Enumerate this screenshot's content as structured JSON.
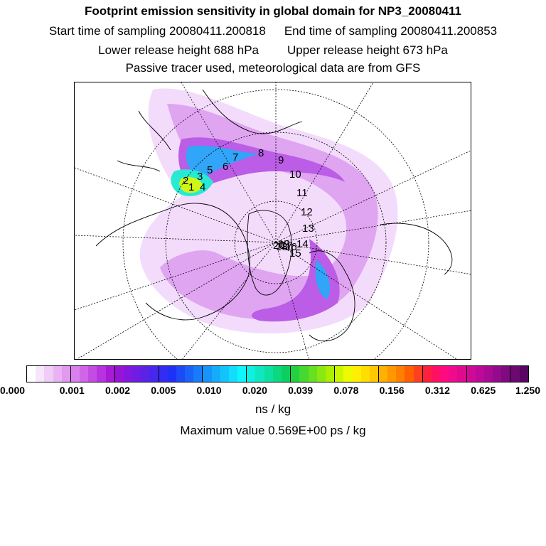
{
  "header": {
    "title": "Footprint emission sensitivity in global domain for NP3_20080411",
    "start_label": "Start time of sampling 20080411.200818",
    "end_label": "End time of sampling 20080411.200853",
    "lower_label": "Lower release height  688 hPa",
    "upper_label": "Upper release height  673 hPa",
    "note": "Passive tracer used, meteorological data are from GFS"
  },
  "map": {
    "projection": "north-polar-stereographic",
    "trajectory_labels": [
      "1",
      "2",
      "3",
      "4",
      "5",
      "6",
      "7",
      "8",
      "9",
      "10",
      "11",
      "12",
      "13",
      "14",
      "15",
      "16",
      "17",
      "18",
      "19",
      "20"
    ]
  },
  "colorbar": {
    "colors": [
      "#ffffff",
      "#f7e6fb",
      "#f0ccf7",
      "#e9b3f3",
      "#e299f0",
      "#d980ec",
      "#cf66e8",
      "#c44ce4",
      "#b833e0",
      "#a81ad6",
      "#9614d6",
      "#8318dc",
      "#6f1de2",
      "#5b22e8",
      "#4727ee",
      "#332cf3",
      "#1f31f6",
      "#1d49f7",
      "#1b62f8",
      "#197bf9",
      "#1793fa",
      "#15acfb",
      "#13c4fc",
      "#11ddfd",
      "#0ff6fe",
      "#0ff0e0",
      "#0ee8c0",
      "#0de0a0",
      "#0cd880",
      "#0bd060",
      "#22d040",
      "#44d830",
      "#66e020",
      "#88e810",
      "#aaf000",
      "#ccf500",
      "#eefa00",
      "#ffef00",
      "#ffdd00",
      "#ffc800",
      "#ffb000",
      "#ff9800",
      "#ff7f00",
      "#ff6000",
      "#ff4020",
      "#ff2040",
      "#ff1060",
      "#ff0a80",
      "#f00a8c",
      "#e00a90",
      "#cf0a96",
      "#bc0a98",
      "#a80a94",
      "#940a8c",
      "#800a80",
      "#6c0870",
      "#580660"
    ],
    "tick_labels": [
      "0.000",
      "0.001",
      "0.002",
      "0.005",
      "0.010",
      "0.020",
      "0.039",
      "0.078",
      "0.156",
      "0.312",
      "0.625",
      "1.250"
    ],
    "unit": "ns / kg"
  },
  "footer": {
    "max_value": "Maximum value  0.569E+00 ps / kg"
  }
}
